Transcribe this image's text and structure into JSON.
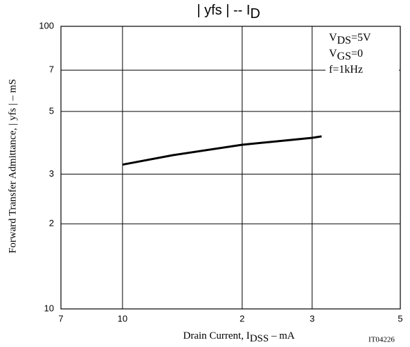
{
  "chart_data": {
    "type": "line",
    "title": {
      "main": "| yfs |  --  I",
      "sub": "D"
    },
    "x_label": {
      "main": "Drain Current, I",
      "sub": "DSS",
      "rest": "  –  mA"
    },
    "y_label": "Forward Transfer Admittance, | yfs |  –  mS",
    "annotations": [
      {
        "main": "V",
        "sub": "DS",
        "rest": "=5V"
      },
      {
        "main": "V",
        "sub": "GS",
        "rest": "=0"
      },
      {
        "main": "f=1kHz"
      }
    ],
    "code": "IT04226",
    "log_x": true,
    "log_y": true,
    "grid": true,
    "xlim": [
      7,
      50
    ],
    "xticks": [
      7,
      10,
      {
        "value": 20,
        "label": "2"
      },
      {
        "value": 30,
        "label": "3"
      },
      {
        "value": 50,
        "label": "5"
      }
    ],
    "ylim": [
      10,
      100
    ],
    "yticks": [
      10,
      {
        "value": 20,
        "label": "2"
      },
      {
        "value": 30,
        "label": "3"
      },
      {
        "value": 50,
        "label": "5"
      },
      {
        "value": 70,
        "label": "7"
      },
      100
    ],
    "series": [
      {
        "color": "#000000",
        "x": [
          10,
          13.4,
          20,
          25,
          30,
          31.7
        ],
        "values": [
          32.4,
          35.0,
          38.1,
          39.3,
          40.3,
          40.8
        ]
      }
    ]
  }
}
